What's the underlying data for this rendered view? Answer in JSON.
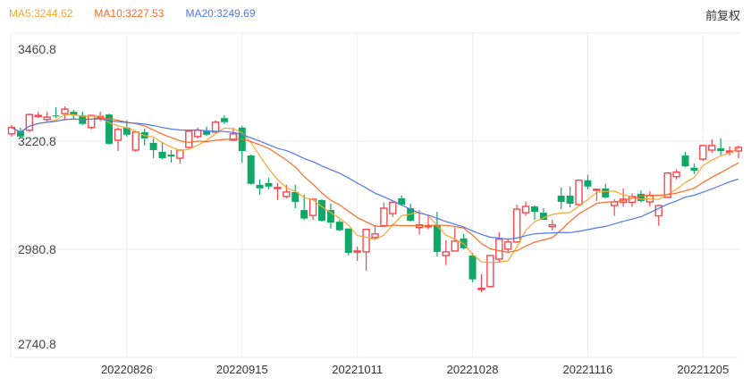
{
  "legend": {
    "ma5": "MA5:3244.62",
    "ma10": "MA10:3227.53",
    "ma20": "MA20:3249.69"
  },
  "adjust_label": "前复权",
  "colors": {
    "up": "#f5474f",
    "down": "#0fa867",
    "ma5": "#f7a630",
    "ma10": "#fb6a24",
    "ma20": "#4f78ee",
    "grid": "#eeeeee"
  },
  "chart_data": {
    "type": "candlestick",
    "title": "",
    "ylim": [
      2740.8,
      3460.8
    ],
    "yticks": [
      "3460.8",
      "3220.8",
      "2980.8",
      "2740.8"
    ],
    "ytick_values": [
      3460.8,
      3220.8,
      2980.8,
      2740.8
    ],
    "xticks": [
      {
        "index": 13,
        "label": "20220826"
      },
      {
        "index": 26,
        "label": "20220915"
      },
      {
        "index": 39,
        "label": "20221011"
      },
      {
        "index": 52,
        "label": "20221028"
      },
      {
        "index": 65,
        "label": "20221116"
      },
      {
        "index": 78,
        "label": "20221205"
      }
    ],
    "ma_periods": [
      5,
      10,
      20
    ],
    "ohlc": [
      [
        3237,
        3257,
        3231,
        3251
      ],
      [
        3243,
        3251,
        3227,
        3231
      ],
      [
        3245,
        3282,
        3241,
        3280
      ],
      [
        3276,
        3286,
        3272,
        3278
      ],
      [
        3269,
        3286,
        3263,
        3274
      ],
      [
        3278,
        3296,
        3272,
        3276
      ],
      [
        3282,
        3298,
        3267,
        3292
      ],
      [
        3286,
        3290,
        3271,
        3278
      ],
      [
        3278,
        3286,
        3257,
        3259
      ],
      [
        3251,
        3280,
        3247,
        3278
      ],
      [
        3274,
        3286,
        3265,
        3276
      ],
      [
        3280,
        3282,
        3213,
        3215
      ],
      [
        3223,
        3251,
        3199,
        3247
      ],
      [
        3251,
        3267,
        3231,
        3235
      ],
      [
        3201,
        3243,
        3197,
        3241
      ],
      [
        3241,
        3249,
        3211,
        3227
      ],
      [
        3217,
        3227,
        3183,
        3201
      ],
      [
        3197,
        3217,
        3181,
        3183
      ],
      [
        3191,
        3201,
        3173,
        3187
      ],
      [
        3183,
        3201,
        3171,
        3201
      ],
      [
        3207,
        3245,
        3205,
        3243
      ],
      [
        3231,
        3251,
        3227,
        3245
      ],
      [
        3245,
        3253,
        3233,
        3235
      ],
      [
        3241,
        3267,
        3239,
        3263
      ],
      [
        3272,
        3278,
        3259,
        3263
      ],
      [
        3223,
        3251,
        3221,
        3237
      ],
      [
        3251,
        3255,
        3173,
        3199
      ],
      [
        3189,
        3191,
        3124,
        3126
      ],
      [
        3124,
        3136,
        3102,
        3116
      ],
      [
        3128,
        3140,
        3114,
        3120
      ],
      [
        3116,
        3128,
        3090,
        3118
      ],
      [
        3098,
        3124,
        3094,
        3108
      ],
      [
        3108,
        3124,
        3072,
        3086
      ],
      [
        3068,
        3102,
        3046,
        3049
      ],
      [
        3056,
        3094,
        3046,
        3092
      ],
      [
        3090,
        3092,
        3042,
        3044
      ],
      [
        3068,
        3082,
        3027,
        3040
      ],
      [
        3042,
        3046,
        3021,
        3023
      ],
      [
        3027,
        3027,
        2967,
        2973
      ],
      [
        2975,
        2987,
        2955,
        2977
      ],
      [
        2975,
        3027,
        2933,
        3025
      ],
      [
        3007,
        3035,
        3003,
        3015
      ],
      [
        3033,
        3085,
        3033,
        3072
      ],
      [
        3060,
        3087,
        3053,
        3085
      ],
      [
        3094,
        3100,
        3078,
        3080
      ],
      [
        3072,
        3082,
        3042,
        3044
      ],
      [
        3029,
        3068,
        3013,
        3035
      ],
      [
        3031,
        3055,
        3025,
        3033
      ],
      [
        3035,
        3064,
        2965,
        2975
      ],
      [
        2967,
        3001,
        2946,
        2975
      ],
      [
        2977,
        3029,
        2977,
        2999
      ],
      [
        3005,
        3015,
        2981,
        2983
      ],
      [
        2967,
        2973,
        2908,
        2914
      ],
      [
        2892,
        2926,
        2886,
        2894
      ],
      [
        2898,
        2967,
        2896,
        2967
      ],
      [
        2959,
        3019,
        2953,
        3003
      ],
      [
        2981,
        3005,
        2975,
        2997
      ],
      [
        2997,
        3080,
        2995,
        3070
      ],
      [
        3062,
        3087,
        3055,
        3076
      ],
      [
        3076,
        3078,
        3046,
        3064
      ],
      [
        3062,
        3072,
        3046,
        3046
      ],
      [
        3031,
        3046,
        3023,
        3035
      ],
      [
        3100,
        3118,
        3070,
        3086
      ],
      [
        3100,
        3120,
        3074,
        3082
      ],
      [
        3080,
        3136,
        3078,
        3134
      ],
      [
        3134,
        3146,
        3114,
        3120
      ],
      [
        3112,
        3116,
        3088,
        3114
      ],
      [
        3116,
        3126,
        3094,
        3096
      ],
      [
        3078,
        3092,
        3055,
        3086
      ],
      [
        3085,
        3116,
        3076,
        3092
      ],
      [
        3085,
        3105,
        3076,
        3098
      ],
      [
        3104,
        3112,
        3085,
        3088
      ],
      [
        3086,
        3110,
        3076,
        3100
      ],
      [
        3055,
        3080,
        3033,
        3078
      ],
      [
        3096,
        3152,
        3094,
        3150
      ],
      [
        3142,
        3158,
        3136,
        3152
      ],
      [
        3189,
        3197,
        3163,
        3165
      ],
      [
        3162,
        3171,
        3148,
        3155
      ],
      [
        3181,
        3213,
        3177,
        3211
      ],
      [
        3201,
        3225,
        3195,
        3211
      ],
      [
        3205,
        3227,
        3189,
        3199
      ],
      [
        3197,
        3209,
        3189,
        3199
      ],
      [
        3199,
        3211,
        3183,
        3207
      ]
    ]
  }
}
